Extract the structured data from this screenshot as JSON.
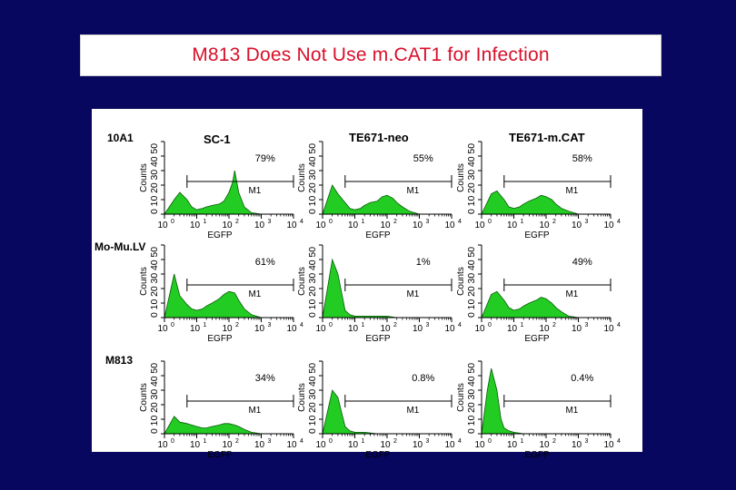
{
  "slide": {
    "title": "M813 Does Not Use m.CAT1 for Infection",
    "title_color": "#d8102a",
    "background_color": "#07075f"
  },
  "figure": {
    "background_color": "#ffffff",
    "row_labels": [
      "10A1",
      "Mo-Mu.LV",
      "M813"
    ],
    "column_labels": [
      "SC-1",
      "TE671-neo",
      "TE671-m.CAT"
    ]
  },
  "chart_data": {
    "type": "area",
    "fill_color": "#22cc22",
    "x_axis": {
      "label": "EGFP",
      "scale": "log",
      "range": [
        1,
        10000
      ],
      "ticks": [
        1,
        10,
        100,
        1000,
        10000
      ],
      "tick_labels": [
        "10",
        "10",
        "10",
        "10",
        "10"
      ],
      "tick_superscripts": [
        "0",
        "1",
        "2",
        "3",
        "4"
      ]
    },
    "y_axis": {
      "label": "Counts",
      "range": [
        0,
        50
      ],
      "ticks": [
        0,
        10,
        20,
        30,
        40,
        50
      ],
      "tick_labels": [
        "0",
        "10",
        "20",
        "30",
        "40",
        "50"
      ],
      "tick_label_text": "0 10 20 30 40 50"
    },
    "gate_label": "M1",
    "histograms": [
      {
        "row": 0,
        "col": 0,
        "percent": "79%",
        "gate_start": 5,
        "gate_end": 10000,
        "x": [
          1,
          2,
          3,
          5,
          7,
          10,
          15,
          20,
          30,
          50,
          70,
          100,
          130,
          150,
          200,
          300,
          500,
          1000,
          10000
        ],
        "y": [
          0,
          10,
          15,
          10,
          5,
          3,
          4,
          5,
          6,
          7,
          9,
          15,
          22,
          30,
          15,
          5,
          1,
          0,
          0
        ]
      },
      {
        "row": 0,
        "col": 1,
        "percent": "55%",
        "gate_start": 5,
        "gate_end": 10000,
        "x": [
          1,
          2,
          3,
          5,
          7,
          10,
          15,
          20,
          30,
          50,
          70,
          100,
          150,
          200,
          300,
          500,
          1000,
          10000
        ],
        "y": [
          0,
          20,
          14,
          8,
          4,
          3,
          4,
          6,
          8,
          9,
          12,
          13,
          11,
          8,
          5,
          2,
          0,
          0
        ]
      },
      {
        "row": 0,
        "col": 2,
        "percent": "58%",
        "gate_start": 5,
        "gate_end": 10000,
        "x": [
          1,
          2,
          3,
          5,
          7,
          10,
          15,
          20,
          30,
          50,
          70,
          100,
          150,
          200,
          300,
          500,
          1000,
          10000
        ],
        "y": [
          0,
          14,
          16,
          10,
          5,
          4,
          5,
          7,
          9,
          11,
          13,
          12,
          10,
          7,
          4,
          2,
          0,
          0
        ]
      },
      {
        "row": 1,
        "col": 0,
        "percent": "61%",
        "gate_start": 5,
        "gate_end": 10000,
        "x": [
          1,
          2,
          3,
          5,
          7,
          10,
          15,
          20,
          30,
          50,
          70,
          100,
          150,
          200,
          300,
          500,
          1000,
          10000
        ],
        "y": [
          0,
          30,
          15,
          9,
          6,
          5,
          6,
          8,
          10,
          13,
          16,
          18,
          17,
          12,
          6,
          2,
          0,
          0
        ]
      },
      {
        "row": 1,
        "col": 1,
        "percent": "1%",
        "gate_start": 5,
        "gate_end": 10000,
        "x": [
          1,
          2,
          3,
          5,
          7,
          10,
          20,
          50,
          100,
          200,
          1000,
          10000
        ],
        "y": [
          0,
          40,
          30,
          5,
          2,
          1,
          1,
          1,
          1,
          0,
          0,
          0
        ]
      },
      {
        "row": 1,
        "col": 2,
        "percent": "49%",
        "gate_start": 5,
        "gate_end": 10000,
        "x": [
          1,
          2,
          3,
          5,
          7,
          10,
          15,
          20,
          30,
          50,
          70,
          100,
          150,
          200,
          300,
          500,
          1000,
          10000
        ],
        "y": [
          0,
          16,
          18,
          12,
          7,
          5,
          6,
          8,
          10,
          12,
          14,
          13,
          10,
          7,
          4,
          1,
          0,
          0
        ]
      },
      {
        "row": 2,
        "col": 0,
        "percent": "34%",
        "gate_start": 5,
        "gate_end": 10000,
        "x": [
          1,
          2,
          3,
          5,
          7,
          10,
          15,
          20,
          30,
          50,
          70,
          100,
          150,
          200,
          300,
          500,
          1000,
          10000
        ],
        "y": [
          0,
          12,
          8,
          7,
          6,
          5,
          4,
          4,
          5,
          6,
          7,
          7,
          6,
          5,
          3,
          1,
          0,
          0
        ]
      },
      {
        "row": 2,
        "col": 1,
        "percent": "0.8%",
        "gate_start": 5,
        "gate_end": 10000,
        "x": [
          1,
          2,
          3,
          5,
          7,
          10,
          20,
          50,
          100,
          1000,
          10000
        ],
        "y": [
          0,
          30,
          25,
          5,
          2,
          1,
          1,
          0,
          0,
          0,
          0
        ]
      },
      {
        "row": 2,
        "col": 2,
        "percent": "0.4%",
        "gate_start": 5,
        "gate_end": 10000,
        "x": [
          1,
          1.5,
          2,
          3,
          4,
          5,
          7,
          10,
          20,
          100,
          1000,
          10000
        ],
        "y": [
          0,
          30,
          45,
          30,
          10,
          4,
          2,
          1,
          0,
          0,
          0,
          0
        ]
      }
    ]
  }
}
